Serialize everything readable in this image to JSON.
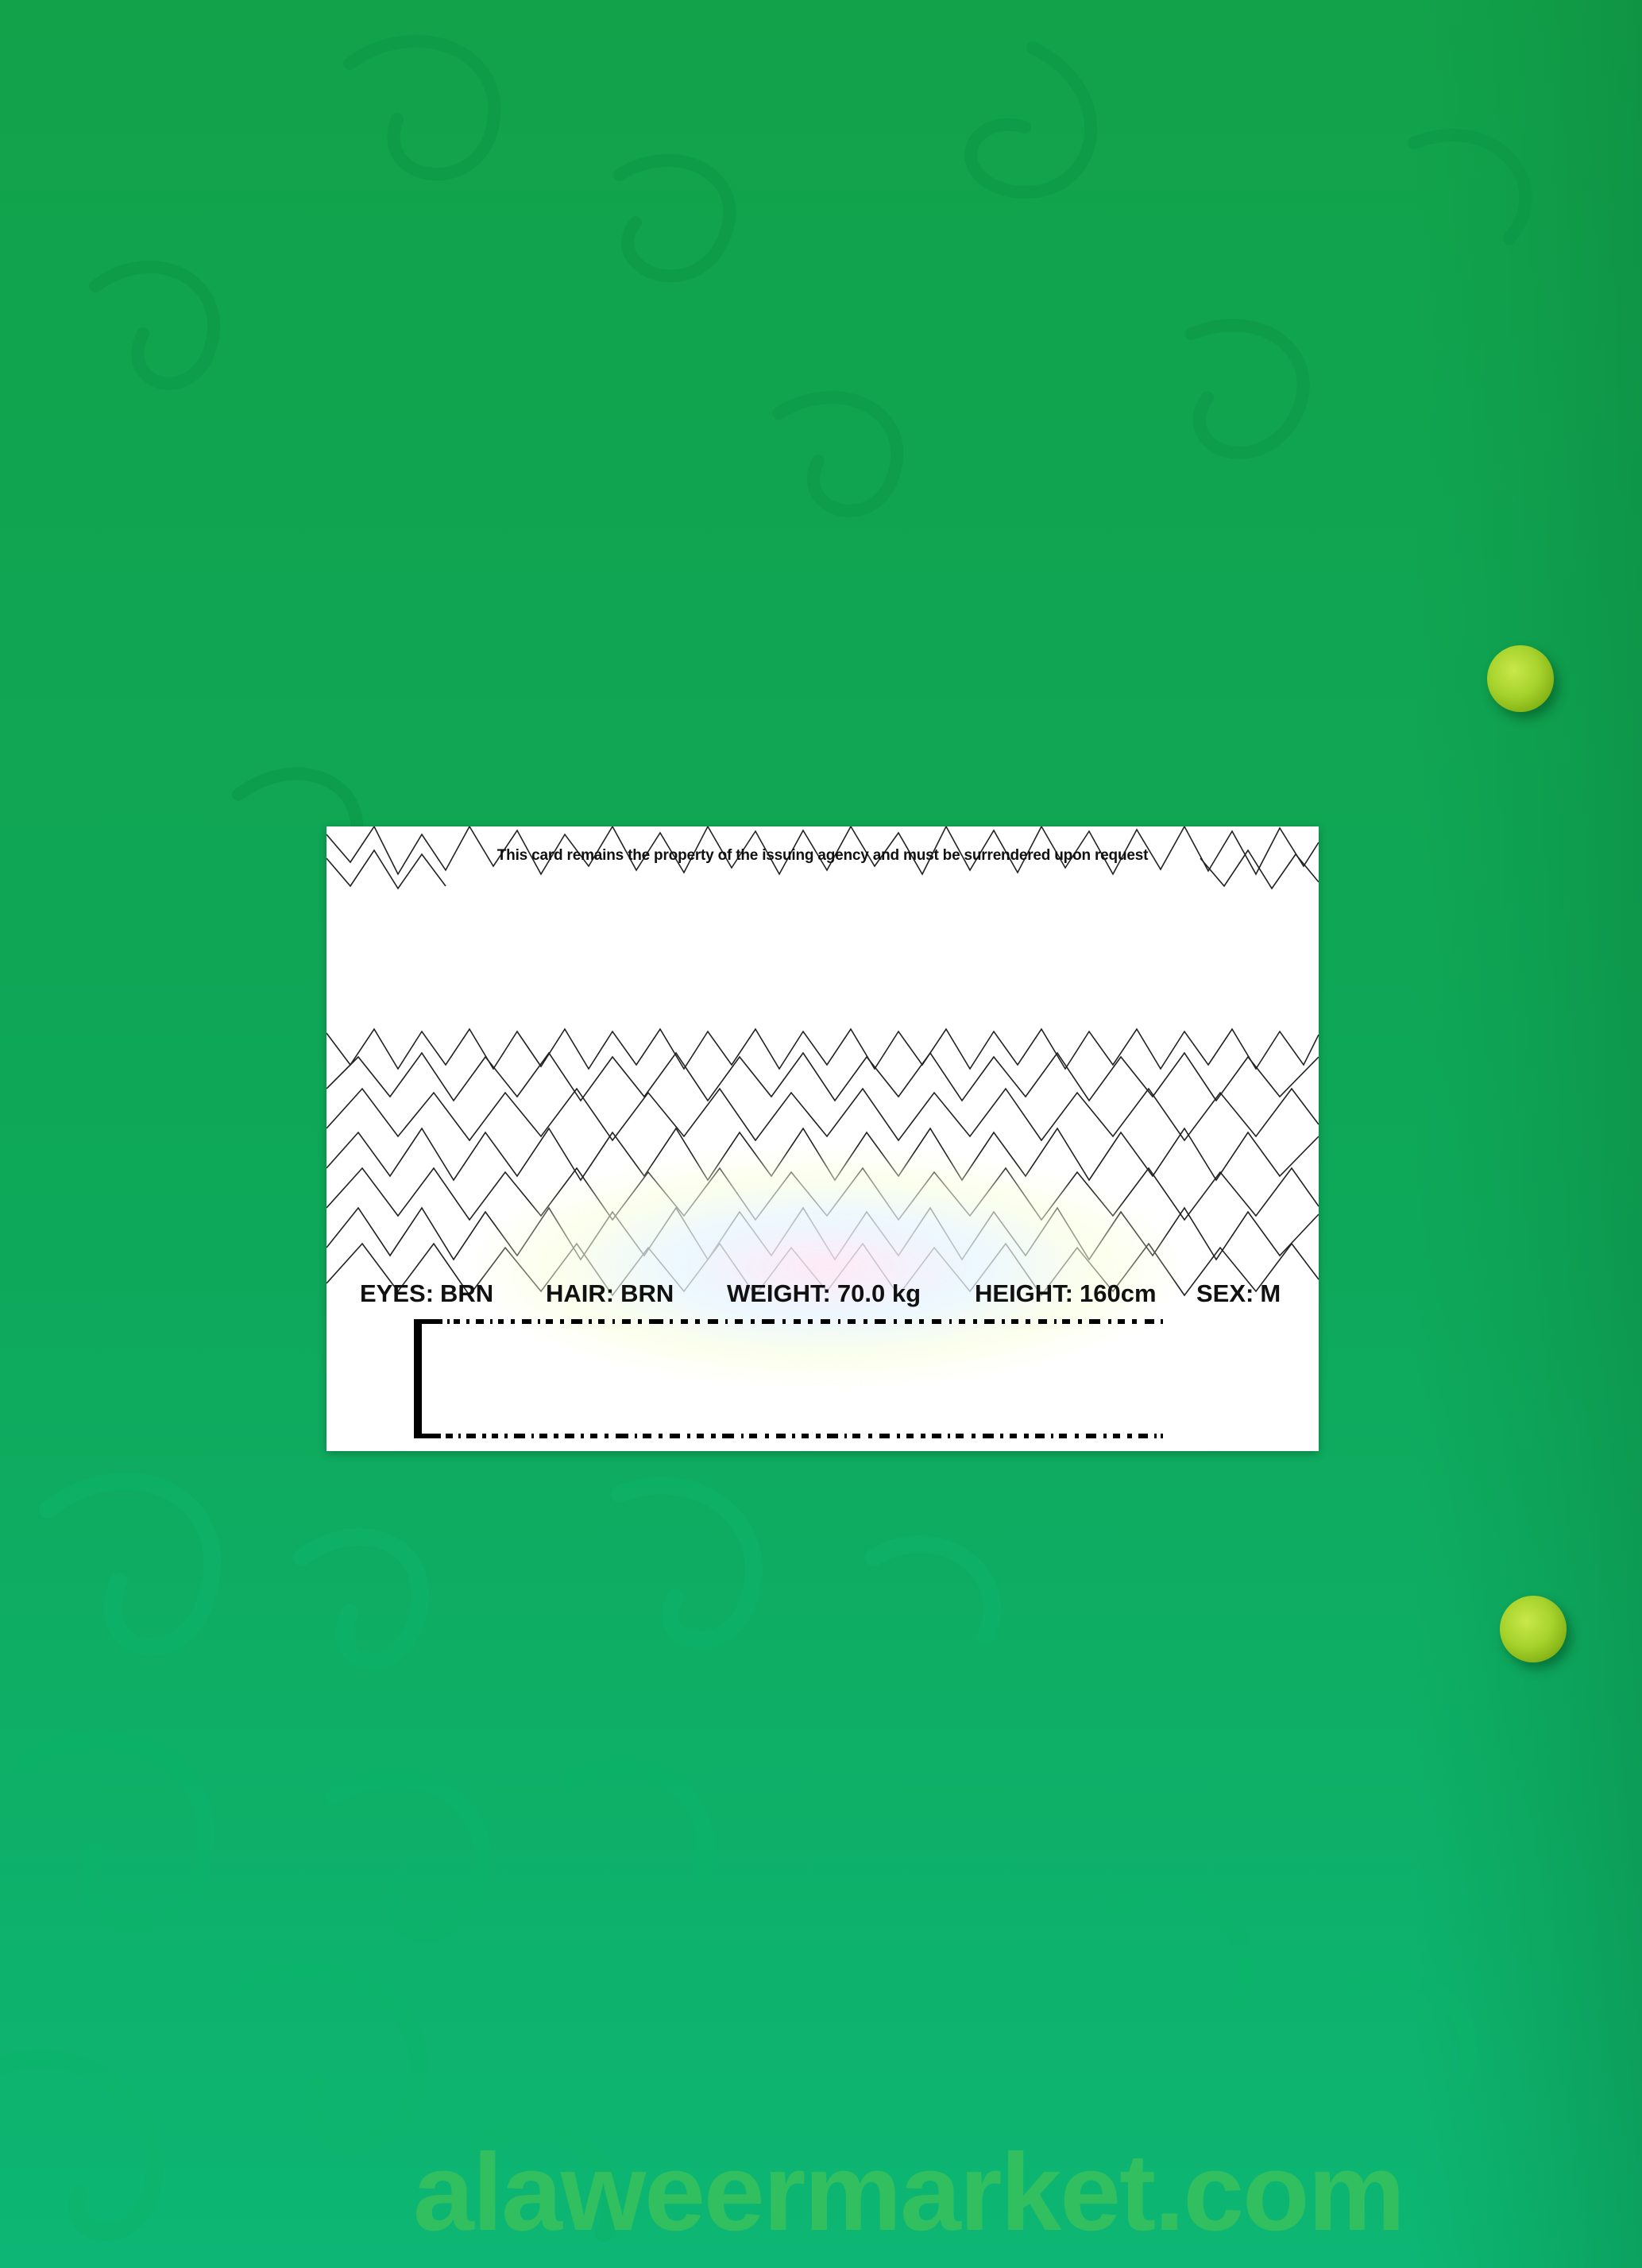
{
  "card": {
    "notice": "This card remains the property of the issuing agency and must be surrendered upon request",
    "fields": [
      {
        "label": "EYES:",
        "value": "BRN"
      },
      {
        "label": "HAIR:",
        "value": "BRN"
      },
      {
        "label": "WEIGHT:",
        "value": "70.0 kg"
      },
      {
        "label": "HEIGHT:",
        "value": "160cm"
      },
      {
        "label": "SEX:",
        "value": "M"
      }
    ]
  },
  "watermark": "alaweermarket.com",
  "colors": {
    "background_green": "#0fa650",
    "card": "#ffffff",
    "pin": "#a6d22c",
    "watermark": "#3fc35a"
  },
  "icons": [
    "push-pin-icon",
    "barcode-icon"
  ]
}
